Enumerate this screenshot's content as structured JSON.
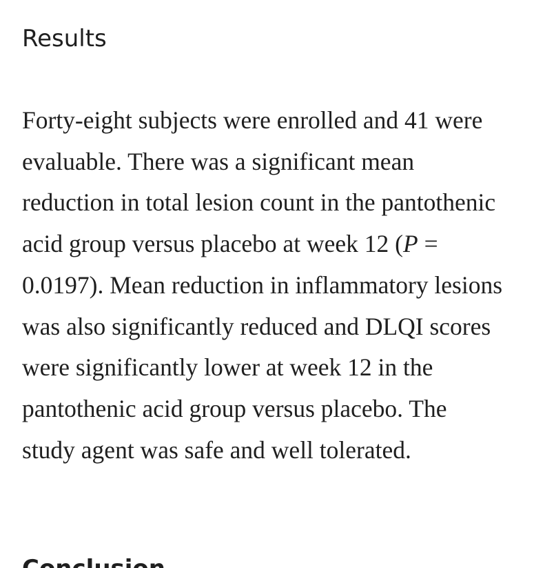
{
  "results": {
    "heading": "Results",
    "text_1": "Forty-eight subjects were enrolled and 41 were evaluable. There was a significant mean reduction in total lesion count in the pantothenic acid group versus placebo at week 12 (",
    "p_symbol": "P",
    "text_2": " = 0.0197). Mean reduction in inflammatory lesions was also significantly reduced and DLQI scores were significantly lower at week 12 in the pantothenic acid group versus placebo. The study agent was safe and well tolerated."
  },
  "conclusion": {
    "heading": "Conclusion"
  }
}
